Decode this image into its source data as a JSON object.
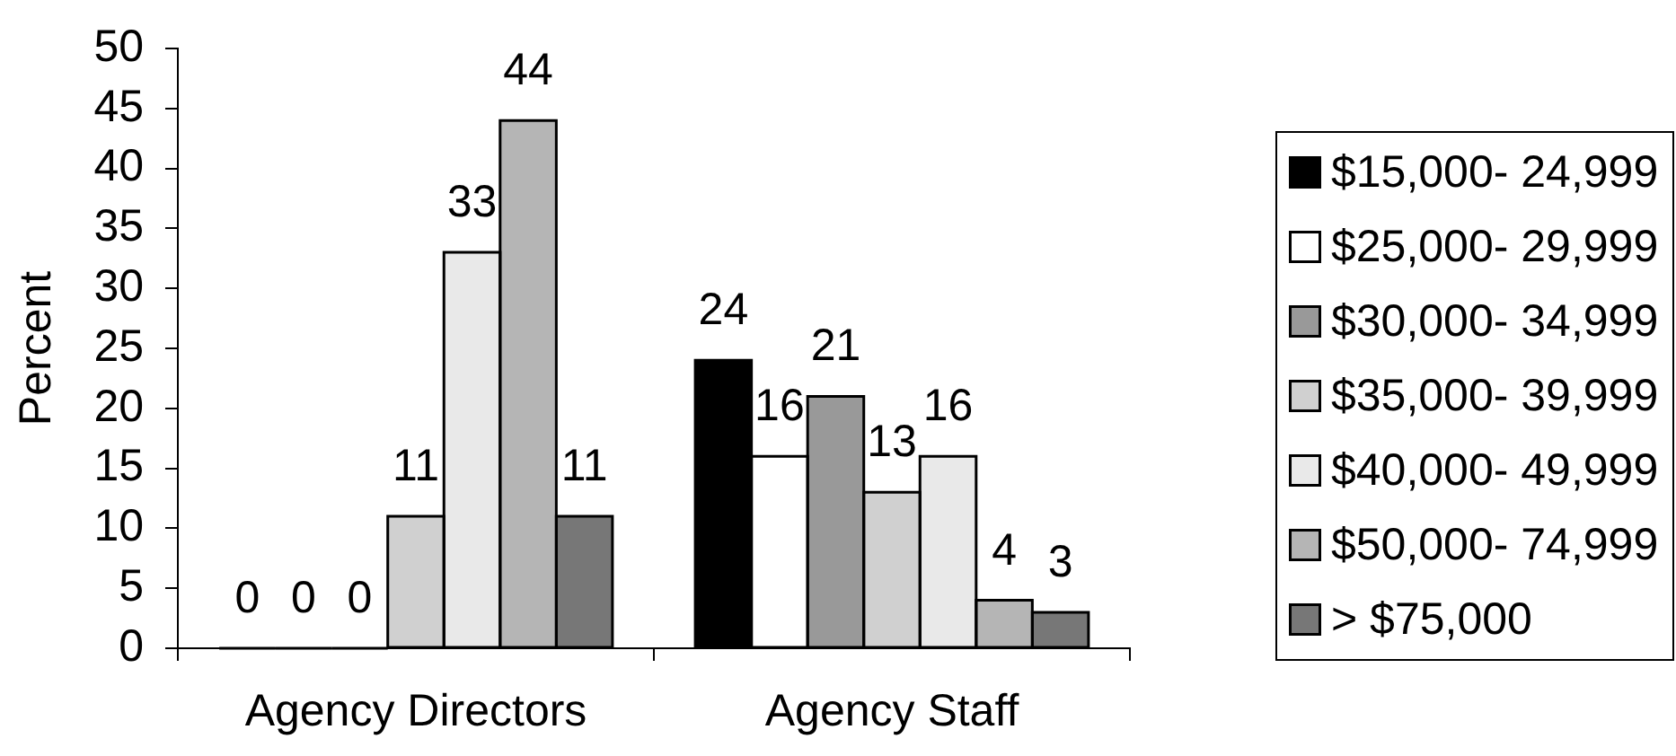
{
  "chart_data": {
    "type": "bar",
    "ylabel": "Percent",
    "categories": [
      "Agency Directors",
      "Agency Staff"
    ],
    "series": [
      {
        "name": "$15,000- 24,999",
        "color": "#000000",
        "values": [
          0,
          24
        ]
      },
      {
        "name": "$25,000- 29,999",
        "color": "#ffffff",
        "values": [
          0,
          16
        ]
      },
      {
        "name": "$30,000- 34,999",
        "color": "#999999",
        "values": [
          0,
          21
        ]
      },
      {
        "name": "$35,000- 39,999",
        "color": "#d0d0d0",
        "values": [
          11,
          13
        ]
      },
      {
        "name": "$40,000- 49,999",
        "color": "#e9e9e9",
        "values": [
          33,
          16
        ]
      },
      {
        "name": "$50,000- 74,999",
        "color": "#b5b5b5",
        "values": [
          44,
          4
        ]
      },
      {
        "name": "> $75,000",
        "color": "#777777",
        "values": [
          11,
          3
        ]
      }
    ],
    "ylim": [
      0,
      50
    ],
    "yticks": [
      0,
      5,
      10,
      15,
      20,
      25,
      30,
      35,
      40,
      45,
      50
    ],
    "data_labels": true,
    "legend": "right"
  }
}
